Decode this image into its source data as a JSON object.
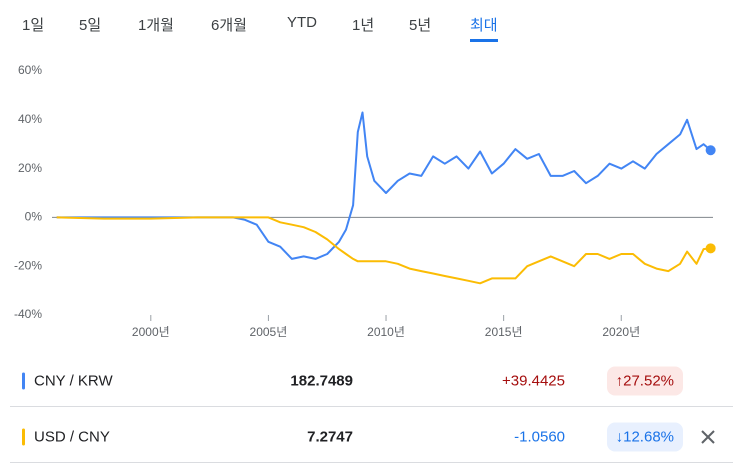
{
  "tabs": [
    "1일",
    "5일",
    "1개월",
    "6개월",
    "YTD",
    "1년",
    "5년",
    "최대"
  ],
  "selected_tab": 7,
  "chart_data": {
    "type": "line",
    "x": [
      1996,
      1998,
      2000,
      2002,
      2003.5,
      2004,
      2004.5,
      2005,
      2005.5,
      2006,
      2006.5,
      2007,
      2007.5,
      2008,
      2008.3,
      2008.6,
      2008.8,
      2009,
      2009.2,
      2009.5,
      2010,
      2010.5,
      2011,
      2011.5,
      2012,
      2012.5,
      2013,
      2013.5,
      2014,
      2014.5,
      2015,
      2015.5,
      2016,
      2016.5,
      2017,
      2017.5,
      2018,
      2018.5,
      2019,
      2019.5,
      2020,
      2020.5,
      2021,
      2021.5,
      2022,
      2022.5,
      2022.8,
      2023.2,
      2023.5,
      2023.8
    ],
    "series": [
      {
        "name": "CNY / KRW",
        "color": "#4285f4",
        "values": [
          0,
          0,
          0,
          0,
          0,
          -1,
          -3,
          -10,
          -12,
          -17,
          -16,
          -17,
          -15,
          -10,
          -5,
          5,
          35,
          43,
          25,
          15,
          10,
          15,
          18,
          17,
          25,
          22,
          25,
          20,
          27,
          18,
          22,
          28,
          24,
          26,
          17,
          17,
          19,
          14,
          17,
          22,
          20,
          23,
          20,
          26,
          30,
          34,
          40,
          28,
          30,
          27.52
        ]
      },
      {
        "name": "USD / CNY",
        "color": "#fbbc04",
        "values": [
          0,
          -0.5,
          -0.5,
          0,
          0,
          0,
          0,
          0,
          -2,
          -3,
          -4,
          -6,
          -9,
          -13,
          -15,
          -17,
          -18,
          -18,
          -18,
          -18,
          -18,
          -19,
          -21,
          -22,
          -23,
          -24,
          -25,
          -26,
          -27,
          -25,
          -25,
          -25,
          -20,
          -18,
          -16,
          -18,
          -20,
          -15,
          -15,
          -17,
          -15,
          -15,
          -19,
          -21,
          -22,
          -19,
          -14,
          -19,
          -13,
          -12.68
        ]
      }
    ],
    "xlim": [
      1995.8,
      2023.9
    ],
    "xticks": [
      {
        "value": 2000,
        "label": "2000년"
      },
      {
        "value": 2005,
        "label": "2005년"
      },
      {
        "value": 2010,
        "label": "2010년"
      },
      {
        "value": 2015,
        "label": "2015년"
      },
      {
        "value": 2020,
        "label": "2020년"
      }
    ],
    "ylim": [
      -40,
      60
    ],
    "yticks": [
      {
        "value": 60,
        "label": "60%"
      },
      {
        "value": 40,
        "label": "40%"
      },
      {
        "value": 20,
        "label": "20%"
      },
      {
        "value": 0,
        "label": "0%"
      },
      {
        "value": -20,
        "label": "-20%"
      },
      {
        "value": -40,
        "label": "-40%"
      }
    ],
    "zero_line": true
  },
  "rows": [
    {
      "name": "CNY / KRW",
      "price": "182.7489",
      "change": "+39.4425",
      "percent": "↑27.52%",
      "direction": "up"
    },
    {
      "name": "USD / CNY",
      "price": "7.2747",
      "change": "-1.0560",
      "percent": "↓12.68%",
      "direction": "down"
    }
  ]
}
